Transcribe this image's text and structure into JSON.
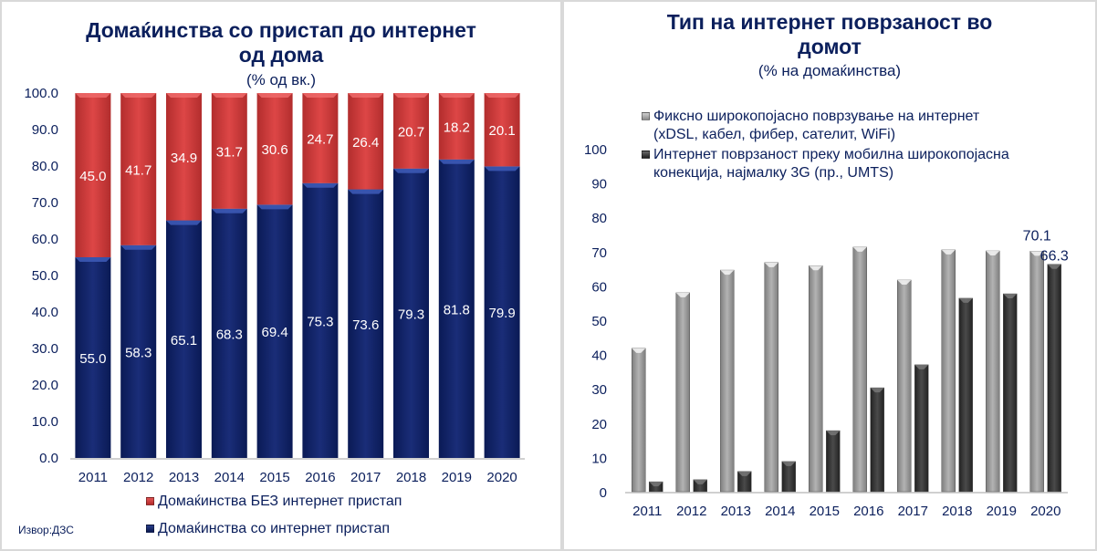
{
  "chart_data": [
    {
      "id": "left",
      "type": "bar",
      "stacked": true,
      "title": "Домаќинства со пристап до интернет од дома",
      "title_line1": "Домаќинства со пристап до интернет",
      "title_line2": "од дома",
      "subtitle": "(% од вк.)",
      "categories": [
        "2011",
        "2012",
        "2013",
        "2014",
        "2015",
        "2016",
        "2017",
        "2018",
        "2019",
        "2020"
      ],
      "series": [
        {
          "name": "Домаќинства со интернет пристап",
          "color": "#0d1f66",
          "values": [
            55.0,
            58.3,
            65.1,
            68.3,
            69.4,
            75.3,
            73.6,
            79.3,
            81.8,
            79.9
          ],
          "labels": [
            "55.0",
            "58.3",
            "65.1",
            "68.3",
            "69.4",
            "75.3",
            "73.6",
            "79.3",
            "81.8",
            "79.9"
          ]
        },
        {
          "name": "Домаќинства БЕЗ интернет пристап",
          "color": "#d43d3d",
          "values": [
            45.0,
            41.7,
            34.9,
            31.7,
            30.6,
            24.7,
            26.4,
            20.7,
            18.2,
            20.1
          ],
          "labels": [
            "45.0",
            "41.7",
            "34.9",
            "31.7",
            "30.6",
            "24.7",
            "26.4",
            "20.7",
            "18.2",
            "20.1"
          ]
        }
      ],
      "yticks": [
        "0.0",
        "10.0",
        "20.0",
        "30.0",
        "40.0",
        "50.0",
        "60.0",
        "70.0",
        "80.0",
        "90.0",
        "100.0"
      ],
      "ylim": [
        0,
        100
      ],
      "xlabel": "",
      "ylabel": "",
      "grid": false,
      "legend": "bottom",
      "legend_items": [
        "Домаќинства БЕЗ интернет пристап",
        "Домаќинства со интернет пристап"
      ],
      "source": "Извор:ДЗС"
    },
    {
      "id": "right",
      "type": "bar",
      "stacked": false,
      "title": "Тип на интернет поврзаност во домот",
      "title_line1": "Тип на интернет поврзаност во",
      "title_line2": "домот",
      "subtitle": "(% на домаќинства)",
      "categories": [
        "2011",
        "2012",
        "2013",
        "2014",
        "2015",
        "2016",
        "2017",
        "2018",
        "2019",
        "2020"
      ],
      "series": [
        {
          "name": "Фиксно широкопојасно поврзување на интернет (xDSL, кабел, фибер, сателит, WiFi)",
          "color": "#a6a6a6",
          "values": [
            41.8,
            58.0,
            64.6,
            66.8,
            65.9,
            71.3,
            61.7,
            70.5,
            70.2,
            70.1
          ]
        },
        {
          "name": "Интернет поврзаност преку мобилна широкопојасна конекција, најмалку 3G (пр., UMTS)",
          "color": "#3a3a3a",
          "values": [
            2.9,
            3.5,
            5.9,
            8.8,
            17.8,
            30.3,
            37.0,
            56.4,
            57.7,
            66.3
          ]
        }
      ],
      "data_labels": [
        {
          "series": 0,
          "category": "2020",
          "text": "70.1"
        },
        {
          "series": 1,
          "category": "2020",
          "text": "66.3"
        }
      ],
      "yticks": [
        "0",
        "10",
        "20",
        "30",
        "40",
        "50",
        "60",
        "70",
        "80",
        "90",
        "100"
      ],
      "ylim": [
        0,
        100
      ],
      "xlabel": "",
      "ylabel": "",
      "grid": false,
      "legend": "top",
      "legend_items": [
        {
          "line1": "Фиксно широкопојасно поврзување на интернет",
          "line2": "(xDSL, кабел, фибер, сателит, WiFi)"
        },
        {
          "line1": "Интернет поврзаност преку мобилна широкопојасна",
          "line2": "конекција, најмалку 3G (пр., UMTS)"
        }
      ]
    }
  ]
}
